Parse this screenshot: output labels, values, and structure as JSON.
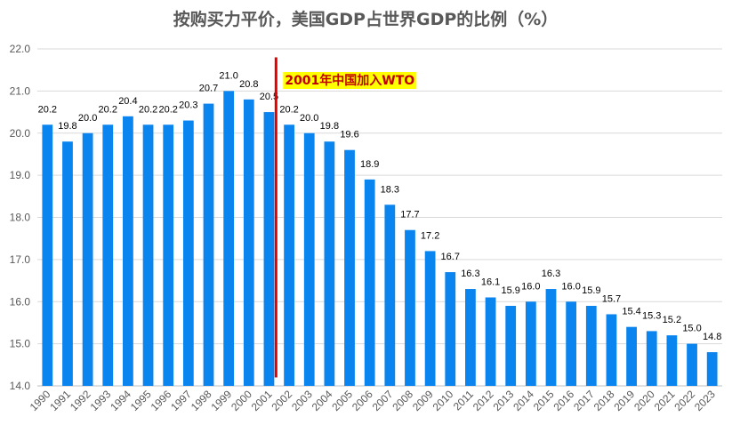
{
  "chart_data": {
    "type": "bar",
    "title": "按购买力平价，美国GDP占世界GDP的比例（%）",
    "xlabel": "",
    "ylabel": "",
    "ylim": [
      14.0,
      22.0
    ],
    "yticks": [
      "14.0",
      "15.0",
      "16.0",
      "17.0",
      "18.0",
      "19.0",
      "20.0",
      "21.0",
      "22.0"
    ],
    "grid": true,
    "categories": [
      "1990",
      "1991",
      "1992",
      "1993",
      "1994",
      "1995",
      "1996",
      "1997",
      "1998",
      "1999",
      "2000",
      "2001",
      "2002",
      "2003",
      "2004",
      "2005",
      "2006",
      "2007",
      "2008",
      "2009",
      "2010",
      "2011",
      "2012",
      "2013",
      "2014",
      "2015",
      "2016",
      "2017",
      "2018",
      "2019",
      "2020",
      "2021",
      "2022",
      "2023"
    ],
    "values": [
      20.2,
      19.8,
      20.0,
      20.2,
      20.4,
      20.2,
      20.2,
      20.3,
      20.7,
      21.0,
      20.8,
      20.5,
      20.2,
      20.0,
      19.8,
      19.6,
      18.9,
      18.3,
      17.7,
      17.2,
      16.7,
      16.3,
      16.1,
      15.9,
      16.0,
      16.3,
      16.0,
      15.9,
      15.7,
      15.4,
      15.3,
      15.2,
      15.0,
      14.8
    ],
    "bar_color": "#0a84ef",
    "annotation": {
      "text": "2001年中国加入WTO",
      "at_category": "2001",
      "line_range": [
        14.2,
        21.8
      ],
      "line_color": "#e00000",
      "text_color": "#c00000",
      "highlight_color": "#ffff00"
    }
  }
}
